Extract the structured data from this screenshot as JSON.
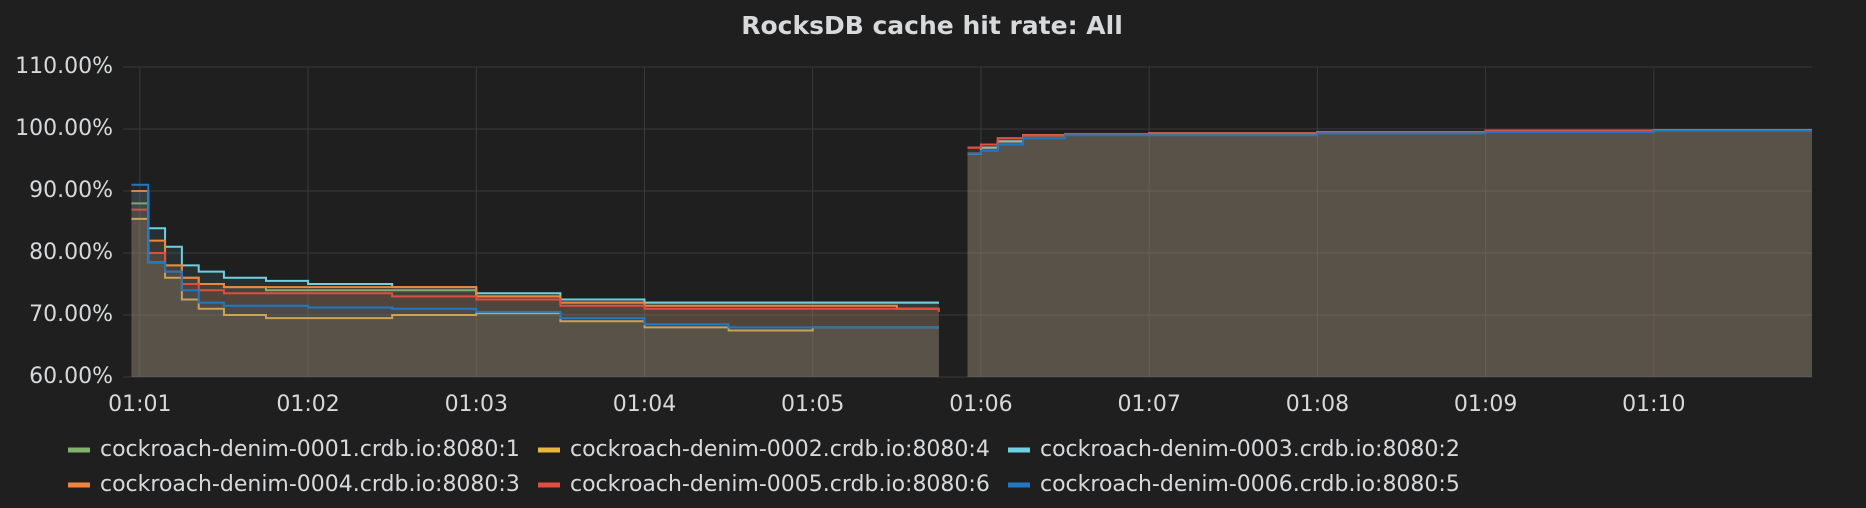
{
  "chart_data": {
    "type": "line",
    "title": "RocksDB cache hit rate: All",
    "step": true,
    "fill": true,
    "grid": true,
    "xlim": [
      60.9,
      70.94
    ],
    "ylim": [
      60,
      110
    ],
    "xticks": [
      {
        "value": 61,
        "label": "01:01"
      },
      {
        "value": 62,
        "label": "01:02"
      },
      {
        "value": 63,
        "label": "01:03"
      },
      {
        "value": 64,
        "label": "01:04"
      },
      {
        "value": 65,
        "label": "01:05"
      },
      {
        "value": 66,
        "label": "01:06"
      },
      {
        "value": 67,
        "label": "01:07"
      },
      {
        "value": 68,
        "label": "01:08"
      },
      {
        "value": 69,
        "label": "01:09"
      },
      {
        "value": 70,
        "label": "01:10"
      }
    ],
    "yticks": [
      {
        "value": 60,
        "label": "60.00%"
      },
      {
        "value": 70,
        "label": "70.00%"
      },
      {
        "value": 80,
        "label": "80.00%"
      },
      {
        "value": 90,
        "label": "90.00%"
      },
      {
        "value": 100,
        "label": "100.00%"
      },
      {
        "value": 110,
        "label": "110.00%"
      }
    ],
    "x": [
      60.95,
      61.05,
      61.15,
      61.25,
      61.35,
      61.5,
      61.75,
      62,
      62.5,
      63,
      63.5,
      64,
      64.5,
      65,
      65.5,
      65.75,
      65.85,
      65.92,
      66.0,
      66.1,
      66.25,
      66.5,
      67,
      68,
      69,
      70,
      70.94
    ],
    "series": [
      {
        "name": "cockroach-denim-0001.crdb.io:8080:1",
        "color": "#7eb26d",
        "values": [
          88,
          80,
          78,
          76,
          75,
          74.5,
          74,
          74,
          74,
          73,
          72,
          72,
          72,
          72,
          72,
          72,
          null,
          96,
          97,
          98,
          99,
          99.2,
          99.3,
          99.5,
          99.7,
          99.8,
          99.8
        ]
      },
      {
        "name": "cockroach-denim-0002.crdb.io:8080:4",
        "color": "#eab839",
        "values": [
          85.5,
          78.5,
          76,
          72.5,
          71,
          70,
          69.5,
          69.5,
          70,
          70.3,
          69,
          68,
          67.5,
          68,
          68,
          68,
          null,
          96,
          97,
          98,
          99,
          99.2,
          99.3,
          99.5,
          99.7,
          99.8,
          99.8
        ]
      },
      {
        "name": "cockroach-denim-0003.crdb.io:8080:2",
        "color": "#6ed0e0",
        "values": [
          90,
          84,
          81,
          78,
          77,
          76,
          75.5,
          75,
          74.5,
          73.5,
          72.5,
          72,
          72,
          72,
          72,
          72,
          null,
          96,
          97,
          98,
          99,
          99.2,
          99.3,
          99.5,
          99.7,
          99.8,
          99.8
        ]
      },
      {
        "name": "cockroach-denim-0004.crdb.io:8080:3",
        "color": "#ef843c",
        "values": [
          90,
          82,
          78,
          76,
          75,
          74.5,
          74.5,
          74.5,
          74.5,
          73,
          72,
          71.5,
          71.5,
          71.5,
          71,
          71,
          null,
          97,
          97.5,
          98.5,
          99,
          99.2,
          99.3,
          99.5,
          99.7,
          99.8,
          99.8
        ]
      },
      {
        "name": "cockroach-denim-0005.crdb.io:8080:6",
        "color": "#e24d42",
        "values": [
          87,
          80,
          77,
          75,
          74,
          73.5,
          73.5,
          73.5,
          73,
          72.5,
          71.5,
          71,
          71,
          71,
          71,
          70.5,
          null,
          97,
          97.5,
          98.5,
          99,
          99.2,
          99.3,
          99.5,
          99.7,
          99.8,
          99.8
        ]
      },
      {
        "name": "cockroach-denim-0006.crdb.io:8080:5",
        "color": "#1f78c1",
        "values": [
          91,
          78.5,
          77,
          74,
          72,
          71.5,
          71.5,
          71.2,
          71,
          70.5,
          69.5,
          68.5,
          68,
          68,
          68,
          68,
          null,
          96,
          96.5,
          97.5,
          98.5,
          99,
          99,
          99.3,
          99.5,
          99.7,
          99.7
        ]
      }
    ]
  }
}
